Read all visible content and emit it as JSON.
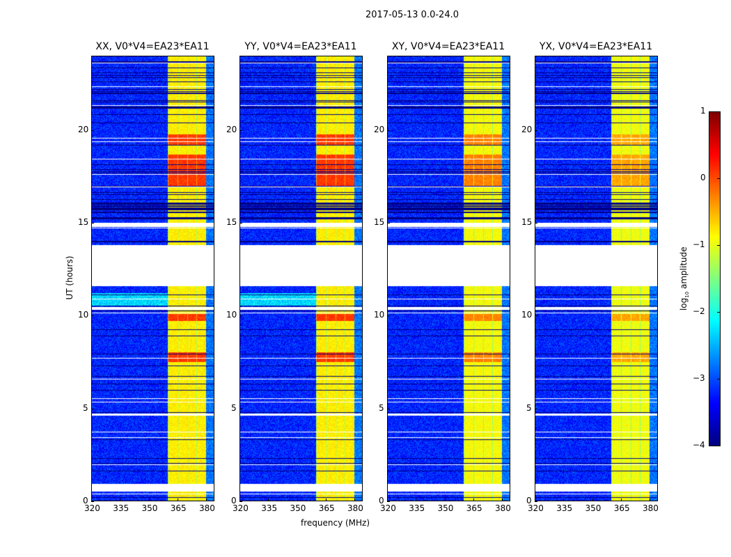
{
  "suptitle": "2017-05-13 0.0-24.0",
  "chart_data": {
    "type": "heatmap",
    "xlabel": "frequency (MHz)",
    "ylabel": "UT (hours)",
    "xlim": [
      320,
      384
    ],
    "ylim": [
      0,
      24
    ],
    "xticks": [
      "320",
      "335",
      "350",
      "365",
      "380"
    ],
    "yticks": [
      "0",
      "5",
      "10",
      "15",
      "20"
    ],
    "panels": [
      {
        "title": "XX, V0*V4=EA23*EA11",
        "strength": 1.0
      },
      {
        "title": "YY, V0*V4=EA23*EA11",
        "strength": 1.0
      },
      {
        "title": "XY, V0*V4=EA23*EA11",
        "strength": 0.7
      },
      {
        "title": "YX, V0*V4=EA23*EA11",
        "strength": 0.55
      }
    ],
    "bright_band_mhz": [
      360,
      380
    ],
    "background_log_amp": -3.2,
    "band_log_amp": -0.8,
    "strong_hours": [
      [
        17.0,
        18.7
      ],
      [
        19.2,
        19.8
      ],
      [
        7.5,
        8.0
      ],
      [
        9.7,
        10.1
      ]
    ],
    "white_gaps_hours": [
      [
        11.6,
        13.8
      ],
      [
        0.5,
        0.9
      ],
      [
        10.3,
        10.45
      ],
      [
        14.8,
        15.0
      ],
      [
        4.6,
        4.7
      ]
    ],
    "black_dense_hours": [
      [
        15.5,
        16.1
      ]
    ],
    "colorbar": {
      "label": "log10 amplitude",
      "label_main": "log",
      "label_sub": "10",
      "label_rest": " amplitude",
      "min": -4,
      "max": 1,
      "ticks": [
        "1",
        "0",
        "−1",
        "−2",
        "−3",
        "−4"
      ],
      "colormap": "jet"
    }
  }
}
